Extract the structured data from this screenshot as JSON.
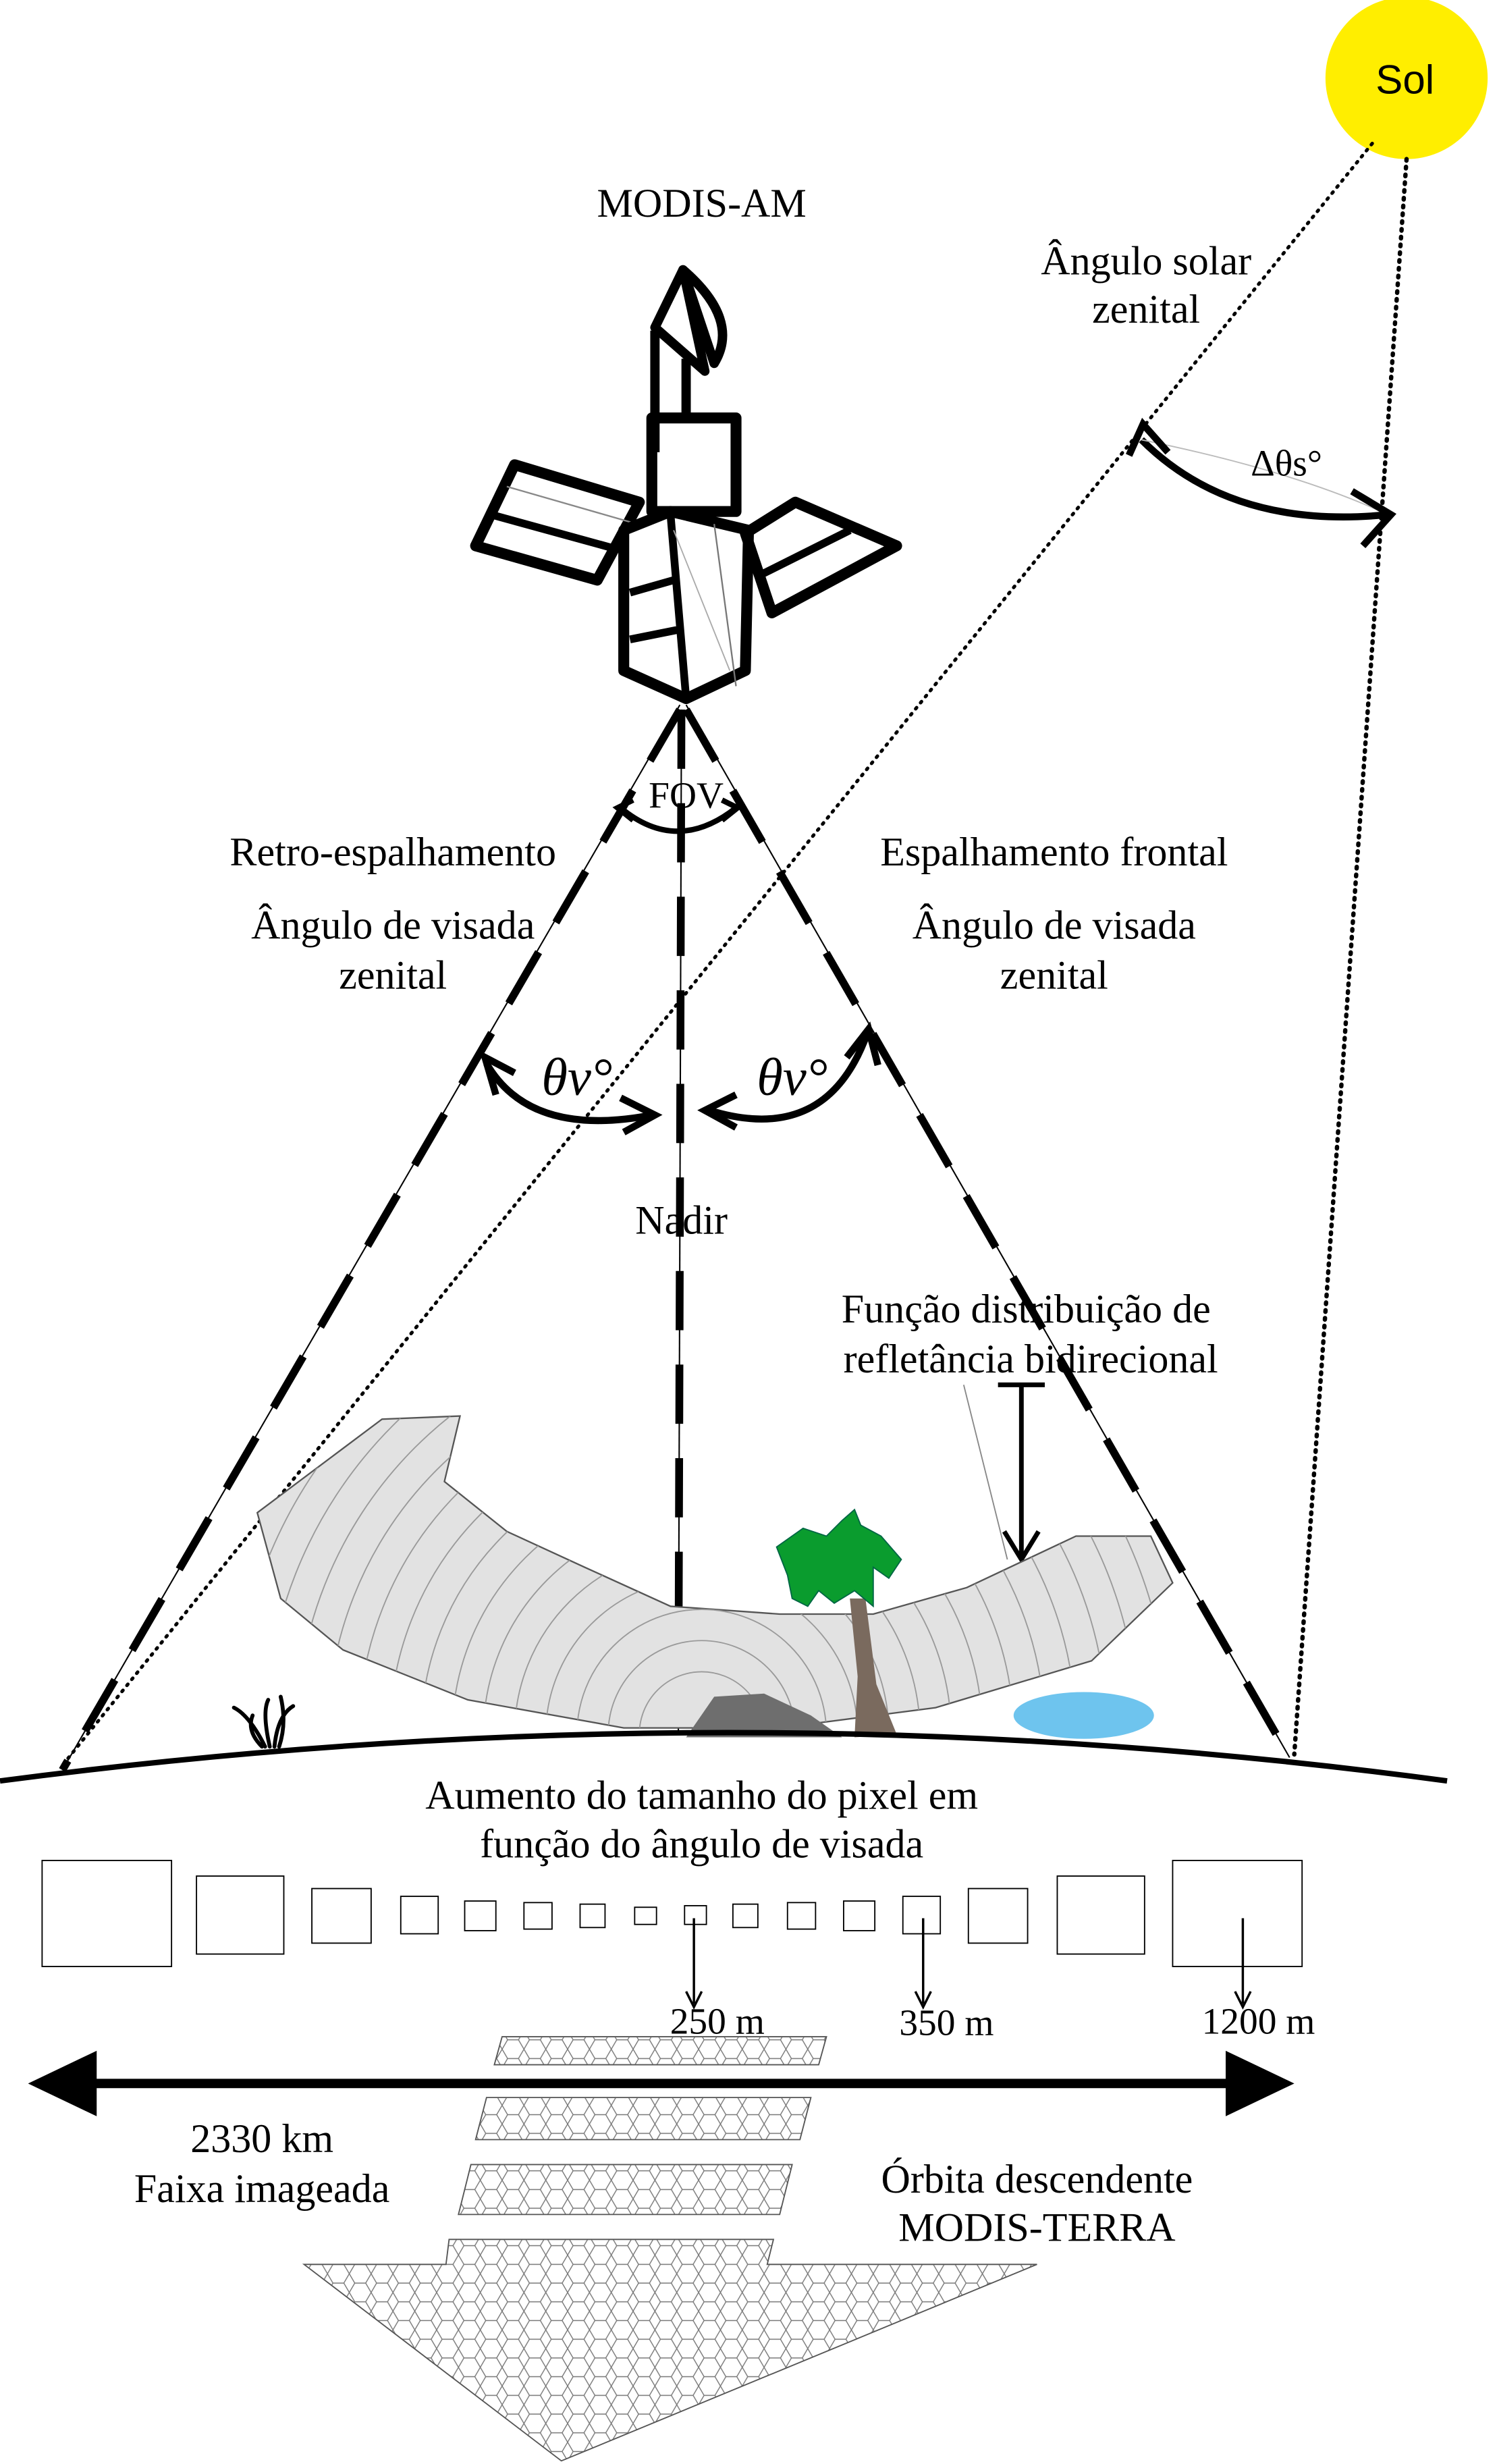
{
  "sun": {
    "label": "Sol",
    "color": "#ffee00"
  },
  "satellite": {
    "label": "MODIS-AM"
  },
  "labels": {
    "solar_zenith_line1": "Ângulo solar",
    "solar_zenith_line2": "zenital",
    "delta_theta_s": "Δθs°",
    "fov": "FOV",
    "backscatter": "Retro-espalhamento",
    "forward_scatter": "Espalhamento frontal",
    "view_zenith_left_line1": "Ângulo de visada",
    "view_zenith_left_line2": "zenital",
    "view_zenith_right_line1": "Ângulo de visada",
    "view_zenith_right_line2": "zenital",
    "theta_v_left": "θv°",
    "theta_v_right": "θv°",
    "nadir": "Nadir",
    "brdf_line1": "Função distribuição de",
    "brdf_line2": "refletância bidirecional",
    "pixel_growth_line1": "Aumento do tamanho do pixel em",
    "pixel_growth_line2": "função do ângulo de visada",
    "pixel_250": "250 m",
    "pixel_350": "350 m",
    "pixel_1200": "1200 m",
    "swath_km": "2330 km",
    "swath_text": "Faixa imageada",
    "orbit_line1": "Órbita descendente",
    "orbit_line2": "MODIS-TERRA"
  },
  "colors": {
    "brdf_fill": "#e2e2e2",
    "palm_leaves": "#0a9c2e",
    "trunk": "#7a6a5e",
    "rock": "#6e6e6e",
    "water": "#6ec4ee"
  }
}
